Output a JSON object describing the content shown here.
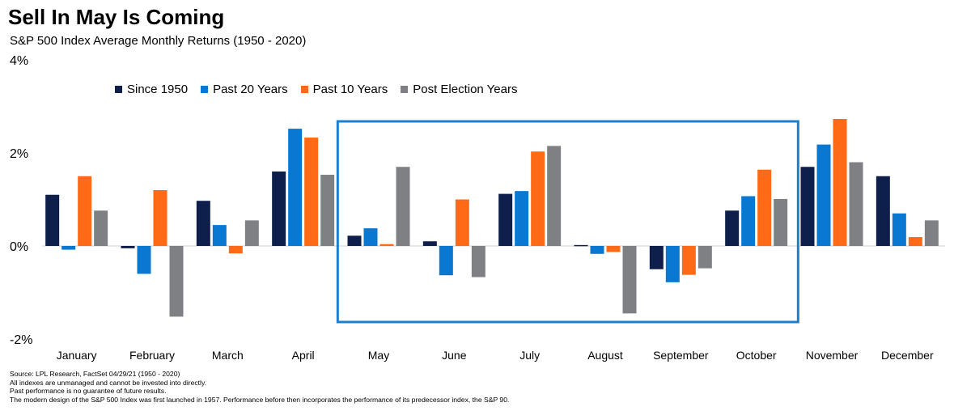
{
  "chart_data": {
    "type": "bar",
    "title": "Sell In May Is Coming",
    "subtitle": "S&P 500 Index Average Monthly Returns (1950 - 2020)",
    "ylabel": "",
    "xlabel": "",
    "ylim": [
      -2,
      4
    ],
    "ytick_values": [
      -2,
      0,
      2,
      4
    ],
    "ytick_labels": [
      "-2%",
      "0%",
      "2%",
      "4%"
    ],
    "categories": [
      "January",
      "February",
      "March",
      "April",
      "May",
      "June",
      "July",
      "August",
      "September",
      "October",
      "November",
      "December"
    ],
    "series": [
      {
        "name": "Since 1950",
        "color": "#0f1f4b",
        "values": [
          1.1,
          -0.05,
          0.97,
          1.6,
          0.22,
          0.1,
          1.12,
          0.02,
          -0.5,
          0.76,
          1.7,
          1.5
        ]
      },
      {
        "name": "Past 20 Years",
        "color": "#0a78d1",
        "values": [
          -0.08,
          -0.6,
          0.45,
          2.52,
          0.38,
          -0.63,
          1.18,
          -0.17,
          -0.78,
          1.07,
          2.18,
          0.7
        ]
      },
      {
        "name": "Past 10 Years",
        "color": "#fe6a16",
        "values": [
          1.5,
          1.2,
          -0.16,
          2.33,
          0.04,
          1.0,
          2.03,
          -0.13,
          -0.62,
          1.64,
          2.73,
          0.19
        ]
      },
      {
        "name": "Post Election Years",
        "color": "#7f8083",
        "values": [
          0.76,
          -1.52,
          0.55,
          1.53,
          1.7,
          -0.67,
          2.15,
          -1.45,
          -0.48,
          1.01,
          1.8,
          0.55
        ]
      }
    ],
    "legend_position": "top-left",
    "highlight": {
      "from": "May",
      "to": "October",
      "color": "#1b7fcf"
    }
  },
  "notes": {
    "source": "Source: LPL Research, FactSet 04/29/21  (1950 - 2020)",
    "line2": "All indexes are unmanaged and cannot be invested into directly.",
    "line3": "Past performance is no guarantee of future results.",
    "line4": "The modern design of the S&P 500 Index was first launched in 1957. Performance before then incorporates the performance of its  predecessor index, the S&P 90."
  }
}
